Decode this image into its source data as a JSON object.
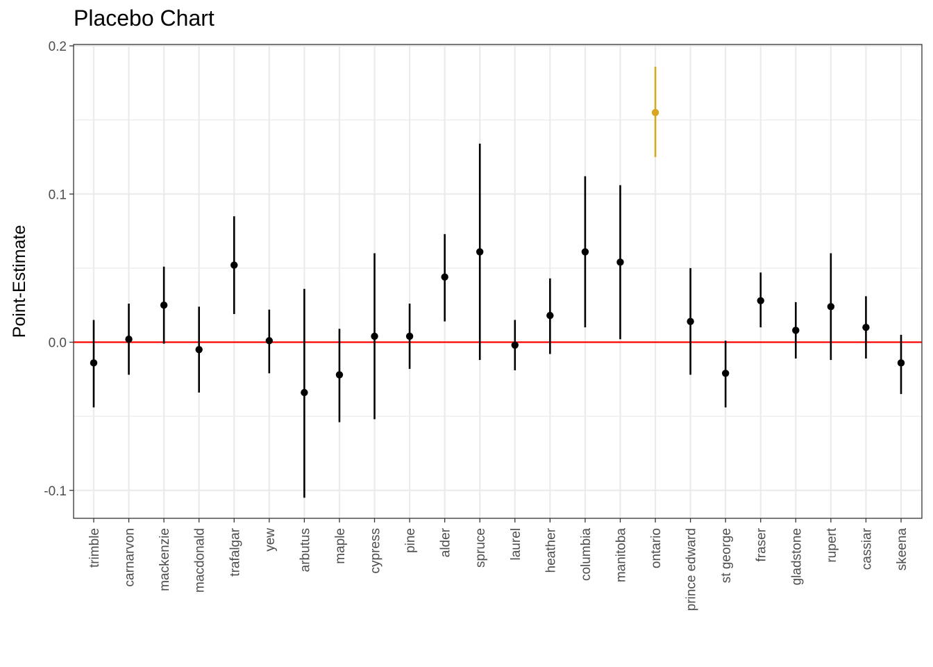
{
  "chart_data": {
    "type": "scatter",
    "title": "Placebo Chart",
    "xlabel": "",
    "ylabel": "Point-Estimate",
    "ylim": [
      -0.118,
      0.2
    ],
    "yticks": [
      -0.1,
      0.0,
      0.1,
      0.2
    ],
    "ytick_labels": [
      "-0.1",
      "0.0",
      "0.1",
      "0.2"
    ],
    "reference_line": {
      "y": 0,
      "color": "#ff0000"
    },
    "grid": true,
    "colors": {
      "default": "#000000",
      "highlight": "#DAA520",
      "grid": "#ebebeb",
      "reference": "#ff0000"
    },
    "categories": [
      "trimble",
      "carnarvon",
      "mackenzie",
      "macdonald",
      "trafalgar",
      "yew",
      "arbutus",
      "maple",
      "cypress",
      "pine",
      "alder",
      "spruce",
      "laurel",
      "heather",
      "columbia",
      "manitoba",
      "ontario",
      "prince edward",
      "st george",
      "fraser",
      "gladstone",
      "rupert",
      "cassiar",
      "skeena"
    ],
    "points": [
      {
        "category": "trimble",
        "estimate": -0.014,
        "lower": -0.044,
        "upper": 0.015
      },
      {
        "category": "carnarvon",
        "estimate": 0.002,
        "lower": -0.022,
        "upper": 0.026
      },
      {
        "category": "mackenzie",
        "estimate": 0.025,
        "lower": -0.001,
        "upper": 0.051
      },
      {
        "category": "macdonald",
        "estimate": -0.005,
        "lower": -0.034,
        "upper": 0.024
      },
      {
        "category": "trafalgar",
        "estimate": 0.052,
        "lower": 0.019,
        "upper": 0.085
      },
      {
        "category": "yew",
        "estimate": 0.001,
        "lower": -0.021,
        "upper": 0.022
      },
      {
        "category": "arbutus",
        "estimate": -0.034,
        "lower": -0.105,
        "upper": 0.036
      },
      {
        "category": "maple",
        "estimate": -0.022,
        "lower": -0.054,
        "upper": 0.009
      },
      {
        "category": "cypress",
        "estimate": 0.004,
        "lower": -0.052,
        "upper": 0.06
      },
      {
        "category": "pine",
        "estimate": 0.004,
        "lower": -0.018,
        "upper": 0.026
      },
      {
        "category": "alder",
        "estimate": 0.044,
        "lower": 0.014,
        "upper": 0.073
      },
      {
        "category": "spruce",
        "estimate": 0.061,
        "lower": -0.012,
        "upper": 0.134
      },
      {
        "category": "laurel",
        "estimate": -0.002,
        "lower": -0.019,
        "upper": 0.015
      },
      {
        "category": "heather",
        "estimate": 0.018,
        "lower": -0.008,
        "upper": 0.043
      },
      {
        "category": "columbia",
        "estimate": 0.061,
        "lower": 0.01,
        "upper": 0.112
      },
      {
        "category": "manitoba",
        "estimate": 0.054,
        "lower": 0.002,
        "upper": 0.106
      },
      {
        "category": "ontario",
        "estimate": 0.155,
        "lower": 0.125,
        "upper": 0.186,
        "highlight": true
      },
      {
        "category": "prince edward",
        "estimate": 0.014,
        "lower": -0.022,
        "upper": 0.05
      },
      {
        "category": "st george",
        "estimate": -0.021,
        "lower": -0.044,
        "upper": 0.001
      },
      {
        "category": "fraser",
        "estimate": 0.028,
        "lower": 0.01,
        "upper": 0.047
      },
      {
        "category": "gladstone",
        "estimate": 0.008,
        "lower": -0.011,
        "upper": 0.027
      },
      {
        "category": "rupert",
        "estimate": 0.024,
        "lower": -0.012,
        "upper": 0.06
      },
      {
        "category": "cassiar",
        "estimate": 0.01,
        "lower": -0.011,
        "upper": 0.031
      },
      {
        "category": "skeena",
        "estimate": -0.014,
        "lower": -0.035,
        "upper": 0.005
      }
    ]
  }
}
